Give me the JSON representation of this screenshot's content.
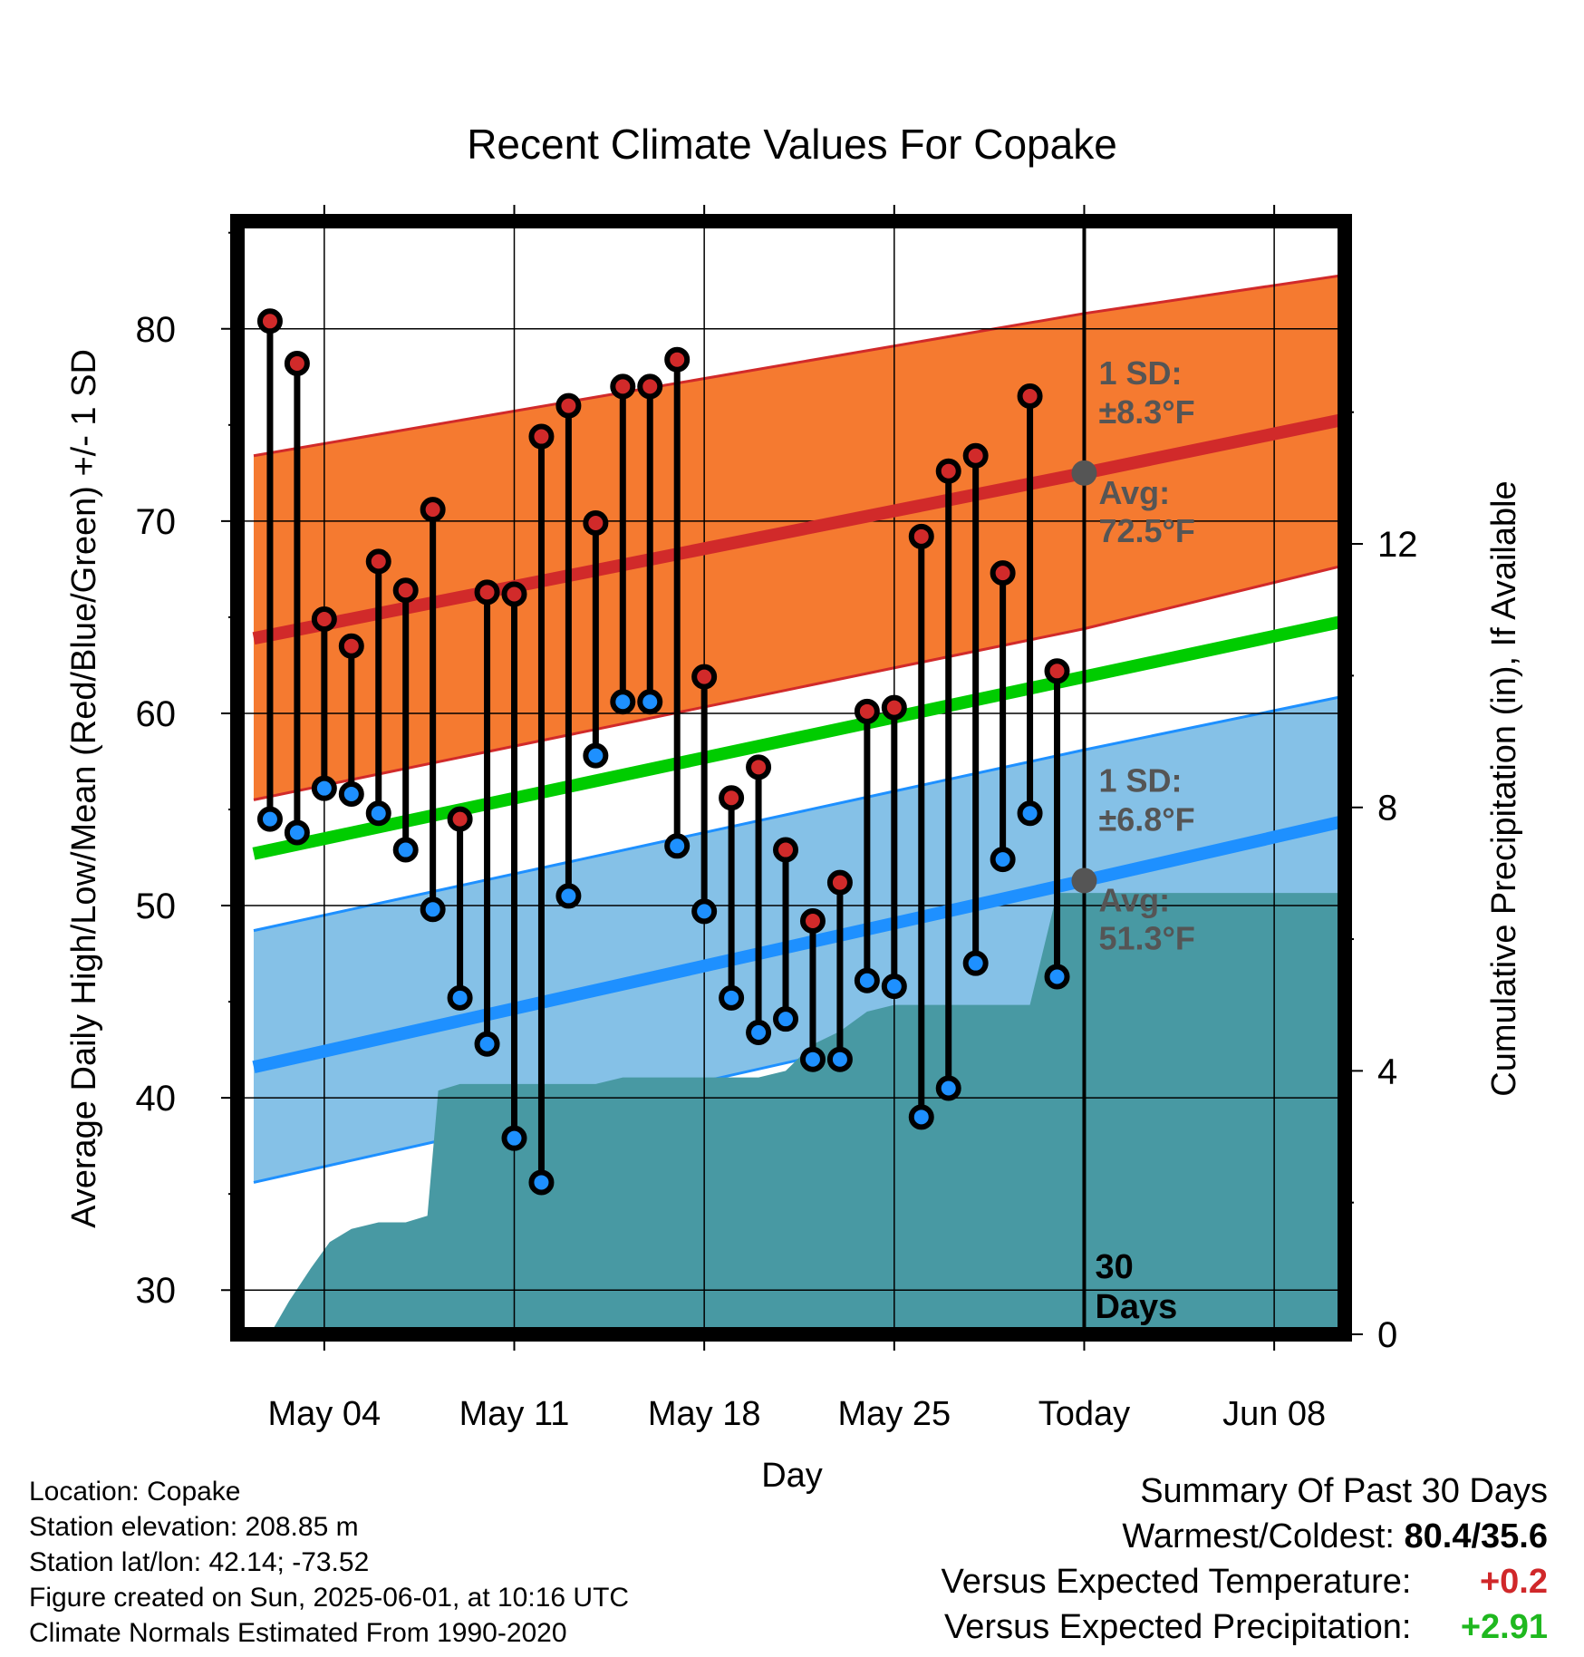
{
  "title": "Recent Climate Values For Copake",
  "xlabel": "Day",
  "ylabel_left": "Average Daily High/Low/Mean (Red/Blue/Green) +/- 1 SD",
  "ylabel_right": "Cumulative Precipitation (in), If Available",
  "colors": {
    "high_band": "#f57a30",
    "high_line": "#d12a2a",
    "low_band": "#85c1e7",
    "low_line": "#1e90ff",
    "mean_line": "#00cc00",
    "precip": "#4899a3",
    "high_marker": "#d12a2a",
    "low_marker": "#1e90ff",
    "today_marker": "#555555",
    "annotation_text": "#555555"
  },
  "annotations": {
    "high_sd_label": "1 SD:",
    "high_sd_value": "±8.3°F",
    "high_avg_label": "Avg:",
    "high_avg_value": "72.5°F",
    "low_sd_label": "1 SD:",
    "low_sd_value": "±6.8°F",
    "low_avg_label": "Avg:",
    "low_avg_value": "51.3°F",
    "period_number": "30",
    "period_unit": "Days"
  },
  "footer": {
    "location": "Location: Copake",
    "elevation": "Station elevation: 208.85 m",
    "latlon": "Station lat/lon: 42.14; -73.52",
    "created": "Figure created on Sun, 2025-06-01, at 10:16 UTC",
    "normals": "Climate Normals Estimated From 1990-2020"
  },
  "summary": {
    "title": "Summary Of Past 30 Days",
    "warm_cold_label": "Warmest/Coldest:",
    "warm_cold_value": "80.4/35.6",
    "temp_label": "Versus Expected Temperature:",
    "temp_value": "+0.2",
    "precip_label": "Versus Expected Precipitation:",
    "precip_value": "+2.91"
  },
  "chart_data": {
    "type": "line",
    "x_axis": {
      "range_days": [
        -31.2,
        9.6
      ],
      "ticks": [
        {
          "day": -28,
          "label": "May 04"
        },
        {
          "day": -21,
          "label": "May 11"
        },
        {
          "day": -14,
          "label": "May 18"
        },
        {
          "day": -7,
          "label": "May 25"
        },
        {
          "day": 0,
          "label": "Today"
        },
        {
          "day": 7,
          "label": "Jun 08"
        }
      ]
    },
    "y_left": {
      "range": [
        27.7,
        85.6
      ],
      "ticks": [
        30,
        40,
        50,
        60,
        70,
        80
      ]
    },
    "y_right": {
      "range": [
        0,
        16.9
      ],
      "ticks": [
        0,
        4,
        8,
        12
      ]
    },
    "grid": true,
    "normals": {
      "day": [
        -30.6,
        0,
        9.6
      ],
      "high_mean": [
        63.9,
        72.5,
        75.3
      ],
      "high_upper": [
        73.4,
        80.8,
        82.8
      ],
      "high_lower": [
        55.5,
        64.4,
        67.7
      ],
      "low_mean": [
        41.6,
        51.3,
        54.4
      ],
      "low_upper": [
        48.7,
        58.1,
        60.9
      ],
      "low_lower": [
        35.6,
        45.3,
        48.5
      ],
      "daily_mean": [
        52.7,
        61.9,
        64.8
      ]
    },
    "daily": {
      "day": [
        -30,
        -29,
        -28,
        -27,
        -26,
        -25,
        -24,
        -23,
        -22,
        -21,
        -20,
        -19,
        -18,
        -17,
        -16,
        -15,
        -14,
        -13,
        -12,
        -11,
        -10,
        -9,
        -8,
        -7,
        -6,
        -5,
        -4,
        -3,
        -2,
        -1
      ],
      "high": [
        80.4,
        78.2,
        64.9,
        63.5,
        67.9,
        66.4,
        70.6,
        54.5,
        66.3,
        66.2,
        74.4,
        76.0,
        69.9,
        77.0,
        77.0,
        78.4,
        61.9,
        55.6,
        57.2,
        52.9,
        49.2,
        51.2,
        60.1,
        60.3,
        69.2,
        72.6,
        73.4,
        67.3,
        76.5,
        62.2
      ],
      "low": [
        54.5,
        53.8,
        56.1,
        55.8,
        54.8,
        52.9,
        49.8,
        45.2,
        42.8,
        37.9,
        35.6,
        50.5,
        57.8,
        60.6,
        60.6,
        53.1,
        49.7,
        45.2,
        43.4,
        44.1,
        42.0,
        42.0,
        46.1,
        45.8,
        39.0,
        40.5,
        47.0,
        52.4,
        54.8,
        46.3
      ]
    },
    "precip_cumulative": {
      "day": [
        -30.6,
        -30.0,
        -29.3,
        -28.5,
        -27.8,
        -27.0,
        -26.0,
        -25.0,
        -24.2,
        -23.8,
        -23.0,
        -22.0,
        -21.0,
        -20.0,
        -19.0,
        -18.0,
        -17.0,
        -16.0,
        -15.0,
        -14.0,
        -13.0,
        -12.0,
        -11.0,
        -10.0,
        -9.0,
        -8.0,
        -7.0,
        -6.0,
        -5.0,
        -4.0,
        -3.0,
        -2.0,
        -1.0,
        0.0,
        9.6
      ],
      "value": [
        0.0,
        0.0,
        0.5,
        1.0,
        1.4,
        1.6,
        1.7,
        1.7,
        1.8,
        3.7,
        3.8,
        3.8,
        3.8,
        3.8,
        3.8,
        3.8,
        3.9,
        3.9,
        3.9,
        3.9,
        3.9,
        3.9,
        4.0,
        4.4,
        4.6,
        4.9,
        5.0,
        5.0,
        5.0,
        5.0,
        5.0,
        5.0,
        6.7,
        6.7,
        6.7
      ]
    }
  }
}
